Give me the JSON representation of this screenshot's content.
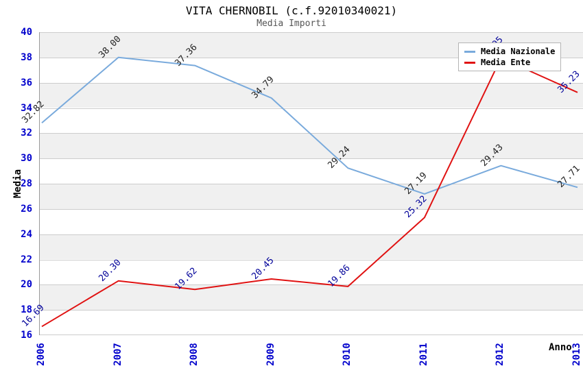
{
  "chart_data": {
    "type": "line",
    "title": "VITA CHERNOBIL (c.f.92010340021)",
    "subtitle": "Media Importi",
    "xlabel": "Anno",
    "ylabel": "Media",
    "categories": [
      "2006",
      "2007",
      "2008",
      "2009",
      "2010",
      "2011",
      "2012",
      "2013"
    ],
    "series": [
      {
        "name": "Media Nazionale",
        "color": "#79aadc",
        "label_color": "#222222",
        "values": [
          32.82,
          38.0,
          37.36,
          34.79,
          29.24,
          27.19,
          29.43,
          27.71
        ],
        "labels": [
          "32.82",
          "38.00",
          "37.36",
          "34.79",
          "29.24",
          "27.19",
          "29.43",
          "27.71"
        ]
      },
      {
        "name": "Media Ente",
        "color": "#e01212",
        "label_color": "#000099",
        "values": [
          16.69,
          20.3,
          19.62,
          20.45,
          19.86,
          25.32,
          37.95,
          35.23
        ],
        "labels": [
          "16.69",
          "20.30",
          "19.62",
          "20.45",
          "19.86",
          "25.32",
          "37.95",
          "35.23"
        ]
      }
    ],
    "ylim": [
      16,
      40
    ],
    "ytick_step": 2,
    "yticks": [
      16,
      18,
      20,
      22,
      24,
      26,
      28,
      30,
      32,
      34,
      36,
      38,
      40
    ],
    "legend_position": "top-right",
    "grid": "horizontal",
    "band_colors": [
      "#f0f0f0",
      "#ffffff"
    ],
    "gridline_color": "#cccccc",
    "tick_label_color": "#0000cc"
  }
}
